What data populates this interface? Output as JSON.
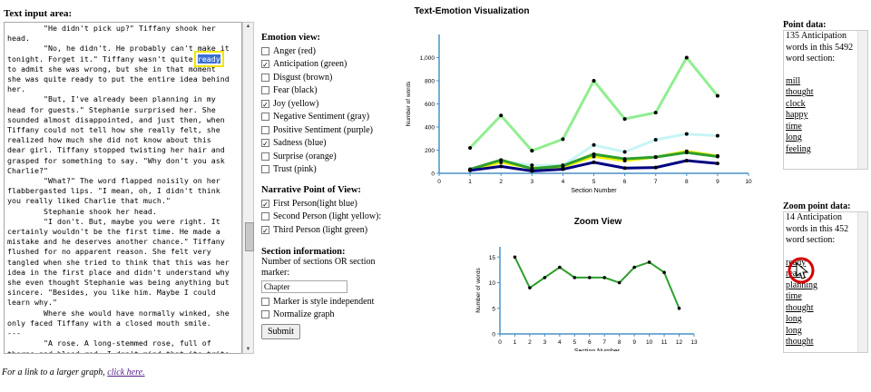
{
  "text_input": {
    "title": "Text input area:",
    "lines": [
      "        \"He didn't pick up?\" Tiffany shook her",
      "head.",
      "        \"No, he didn't. He probably can't make it",
      "tonight. Forget it.\" Tiffany wasn't quite ready",
      "to admit she was wrong, but she in that moment",
      "she was quite ready to put the entire idea behind",
      "her.",
      "        \"But, I've already been planning in my",
      "head for guests.\" Stephanie surprised her. She",
      "sounded almost disappointed, and just then, when",
      "Tiffany could not tell how she really felt, she",
      "realized how much she did not know about this",
      "dear girl. Tiffany stopped twisting her hair and",
      "grasped for something to say. \"Why don't you ask",
      "Charlie?\"",
      "        \"What?\" The word flapped noisily on her",
      "flabbergasted lips. \"I mean, oh, I didn't think",
      "you really liked Charlie that much.\"",
      "        Stephanie shook her head.",
      "        \"I don't. But, maybe you were right. It",
      "certainly wouldn't be the first time. He made a",
      "mistake and he deserves another chance.\" Tiffany",
      "flushed for no apparent reason. She felt very",
      "tangled when she tried to think that this was her",
      "idea in the first place and didn't understand why",
      "she even thought Stephanie was being anything but",
      "sincere. \"Besides, you like him. Maybe I could",
      "learn why.\"",
      "        Where she would have normally winked, she",
      "only faced Tiffany with a closed mouth smile.",
      "---",
      "        \"A rose. A long-stemmed rose, full of",
      "thorns and blood red. I don't mind that its trite"
    ],
    "highlight_word": "ready"
  },
  "link": {
    "prefix": "For a link to a larger graph, ",
    "text": "click here."
  },
  "emotion_view": {
    "title": "Emotion view:",
    "options": [
      {
        "label": "Anger (red)",
        "checked": false
      },
      {
        "label": "Anticipation (green)",
        "checked": true
      },
      {
        "label": "Disgust (brown)",
        "checked": false
      },
      {
        "label": "Fear (black)",
        "checked": false
      },
      {
        "label": "Joy (yellow)",
        "checked": true
      },
      {
        "label": "Negative Sentiment (gray)",
        "checked": false
      },
      {
        "label": "Positive Sentiment (purple)",
        "checked": false
      },
      {
        "label": "Sadness (blue)",
        "checked": true
      },
      {
        "label": "Surprise (orange)",
        "checked": false
      },
      {
        "label": "Trust (pink)",
        "checked": false
      }
    ]
  },
  "narrative_pov": {
    "title": "Narrative Point of View:",
    "options": [
      {
        "label": "First Person(light blue)",
        "checked": true
      },
      {
        "label": "Second Person (light yellow):",
        "checked": false
      },
      {
        "label": "Third Person (light green)",
        "checked": true
      }
    ]
  },
  "section_info": {
    "title": "Section information:",
    "desc": "Number of sections OR section marker:",
    "marker_value": "Chapter",
    "options": [
      {
        "label": "Marker is style independent",
        "checked": false
      },
      {
        "label": "Normalize graph",
        "checked": false
      }
    ],
    "submit_label": "Submit"
  },
  "point_data": {
    "title": "Point data:",
    "desc": "135 Anticipation words in this 5492 word section:",
    "words": [
      "mill",
      "thought",
      "clock",
      "happy",
      "time",
      "long",
      "feeling"
    ]
  },
  "zoom_point_data": {
    "title": "Zoom point data:",
    "desc": "14 Anticipation words in this 452 word section:",
    "words": [
      "ready",
      "ready",
      "planning",
      "time",
      "thought",
      "long",
      "long",
      "thought"
    ]
  },
  "chart_data": [
    {
      "type": "line",
      "title": "Text-Emotion Visualization",
      "xlabel": "Section Number",
      "ylabel": "Number of words",
      "x": [
        1,
        2,
        3,
        4,
        5,
        6,
        7,
        8,
        9
      ],
      "xlim": [
        0,
        10
      ],
      "ylim": [
        0,
        1200
      ],
      "yticks": [
        0,
        200,
        400,
        600,
        800,
        1000
      ],
      "ytick_labels": [
        "0",
        "200",
        "400",
        "600",
        "800",
        "1,000"
      ],
      "series": [
        {
          "color": "#90ee90",
          "values": [
            220,
            500,
            195,
            295,
            800,
            470,
            525,
            1000,
            670
          ]
        },
        {
          "color": "#c8f4f4",
          "values": [
            30,
            105,
            70,
            70,
            245,
            185,
            290,
            340,
            325
          ]
        },
        {
          "color": "#f0f000",
          "values": [
            30,
            95,
            45,
            55,
            145,
            110,
            140,
            190,
            150
          ]
        },
        {
          "color": "#2e9e2e",
          "values": [
            35,
            115,
            40,
            65,
            165,
            125,
            140,
            180,
            145
          ]
        },
        {
          "color": "#000080",
          "values": [
            25,
            60,
            20,
            35,
            95,
            45,
            50,
            110,
            85
          ]
        }
      ]
    },
    {
      "type": "line",
      "title": "Zoom View",
      "xlabel": "Section Number",
      "ylabel": "Number of words",
      "x": [
        1,
        2,
        3,
        4,
        5,
        6,
        7,
        8,
        9,
        10,
        11,
        12
      ],
      "xlim": [
        0,
        13
      ],
      "ylim": [
        0,
        17
      ],
      "yticks": [
        0,
        5,
        10,
        15
      ],
      "series": [
        {
          "color": "#2e9e2e",
          "values": [
            15,
            9,
            11,
            13,
            11,
            11,
            11,
            10,
            13,
            14,
            12,
            5
          ]
        }
      ]
    }
  ]
}
